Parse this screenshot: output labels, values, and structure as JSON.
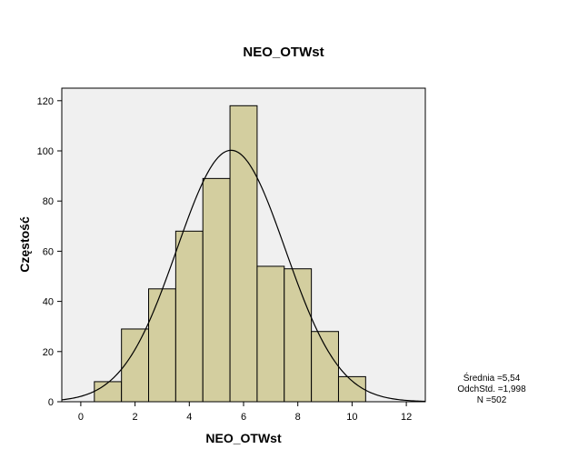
{
  "chart_data": {
    "type": "bar",
    "title": "NEO_OTWst",
    "xlabel": "NEO_OTWst",
    "ylabel": "Częstość",
    "bin_width": 1,
    "bins": [
      {
        "center": 1,
        "count": 8
      },
      {
        "center": 2,
        "count": 29
      },
      {
        "center": 3,
        "count": 45
      },
      {
        "center": 4,
        "count": 68
      },
      {
        "center": 5,
        "count": 89
      },
      {
        "center": 6,
        "count": 118
      },
      {
        "center": 7,
        "count": 54
      },
      {
        "center": 8,
        "count": 53
      },
      {
        "center": 9,
        "count": 28
      },
      {
        "center": 10,
        "count": 10
      }
    ],
    "xlim": [
      -0.7,
      12.7
    ],
    "ylim": [
      0,
      125
    ],
    "x_ticks": [
      "0",
      "2",
      "4",
      "6",
      "8",
      "10",
      "12"
    ],
    "y_ticks": [
      "0",
      "20",
      "40",
      "60",
      "80",
      "100",
      "120"
    ],
    "normal_curve": {
      "mean": 5.54,
      "std": 1.998,
      "n": 502
    },
    "stats": {
      "mean_text": "Średnia =5,54",
      "std_text": "OdchStd. =1,998",
      "n_text": "N =502"
    },
    "colors": {
      "bar_fill": "#d3ce9f",
      "bar_stroke": "#000000",
      "plot_background": "#f0f0f0",
      "curve": "#000000"
    },
    "grid": false,
    "legend": "none"
  }
}
